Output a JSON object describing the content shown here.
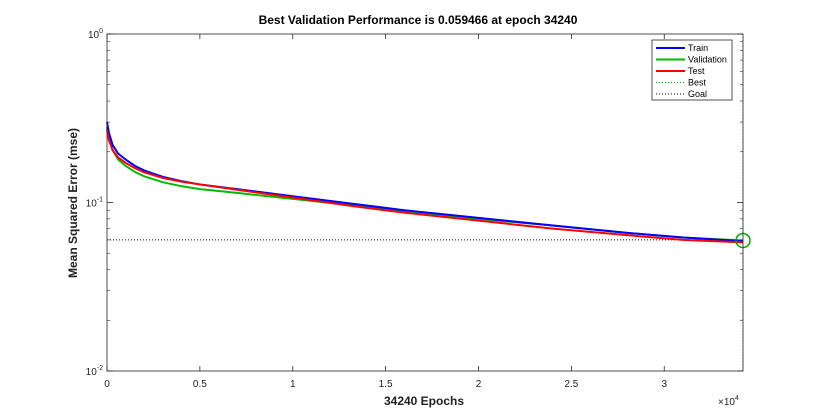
{
  "chart_data": {
    "type": "line",
    "title": "Best Validation Performance is 0.059466 at epoch 34240",
    "xlabel": "34240 Epochs",
    "ylabel": "Mean Squared Error  (mse)",
    "y_scale": "log",
    "xlim": [
      0,
      34240
    ],
    "ylim": [
      0.01,
      1
    ],
    "x_exponent_label": "×10",
    "x_exponent_power": "4",
    "x_ticks": [
      {
        "value": 0,
        "label": "0"
      },
      {
        "value": 5000,
        "label": "0.5"
      },
      {
        "value": 10000,
        "label": "1"
      },
      {
        "value": 15000,
        "label": "1.5"
      },
      {
        "value": 20000,
        "label": "2"
      },
      {
        "value": 25000,
        "label": "2.5"
      },
      {
        "value": 30000,
        "label": "3"
      }
    ],
    "y_ticks": [
      {
        "value": 1,
        "base": "10",
        "exp": "0"
      },
      {
        "value": 0.1,
        "base": "10",
        "exp": "-1"
      },
      {
        "value": 0.01,
        "base": "10",
        "exp": "-2"
      }
    ],
    "grid": false,
    "legend_position": "top-right",
    "x": [
      0,
      100,
      300,
      600,
      1000,
      1500,
      2000,
      3000,
      4000,
      5000,
      7000,
      10000,
      13000,
      16000,
      20000,
      24000,
      28000,
      31000,
      34240
    ],
    "series": [
      {
        "name": "Train",
        "color": "#0000ff",
        "style": "solid",
        "values": [
          0.3,
          0.26,
          0.22,
          0.195,
          0.18,
          0.165,
          0.155,
          0.142,
          0.134,
          0.128,
          0.12,
          0.109,
          0.099,
          0.09,
          0.081,
          0.073,
          0.066,
          0.062,
          0.059
        ]
      },
      {
        "name": "Validation",
        "color": "#00bb00",
        "style": "solid",
        "values": [
          0.28,
          0.24,
          0.205,
          0.18,
          0.165,
          0.152,
          0.143,
          0.132,
          0.125,
          0.12,
          0.114,
          0.105,
          0.097,
          0.089,
          0.08,
          0.073,
          0.066,
          0.062,
          0.0595
        ]
      },
      {
        "name": "Test",
        "color": "#ff0000",
        "style": "solid",
        "values": [
          0.27,
          0.235,
          0.205,
          0.185,
          0.172,
          0.16,
          0.151,
          0.14,
          0.133,
          0.128,
          0.119,
          0.107,
          0.096,
          0.087,
          0.078,
          0.07,
          0.064,
          0.06,
          0.058
        ]
      },
      {
        "name": "Best",
        "color": "#00aa00",
        "style": "dotted",
        "kind": "vline",
        "x": 34240
      },
      {
        "name": "Goal",
        "color": "#000000",
        "style": "dotted",
        "kind": "hline",
        "y": 0.06
      }
    ],
    "best_marker": {
      "x": 34240,
      "y": 0.059466,
      "color": "#00aa00"
    }
  }
}
